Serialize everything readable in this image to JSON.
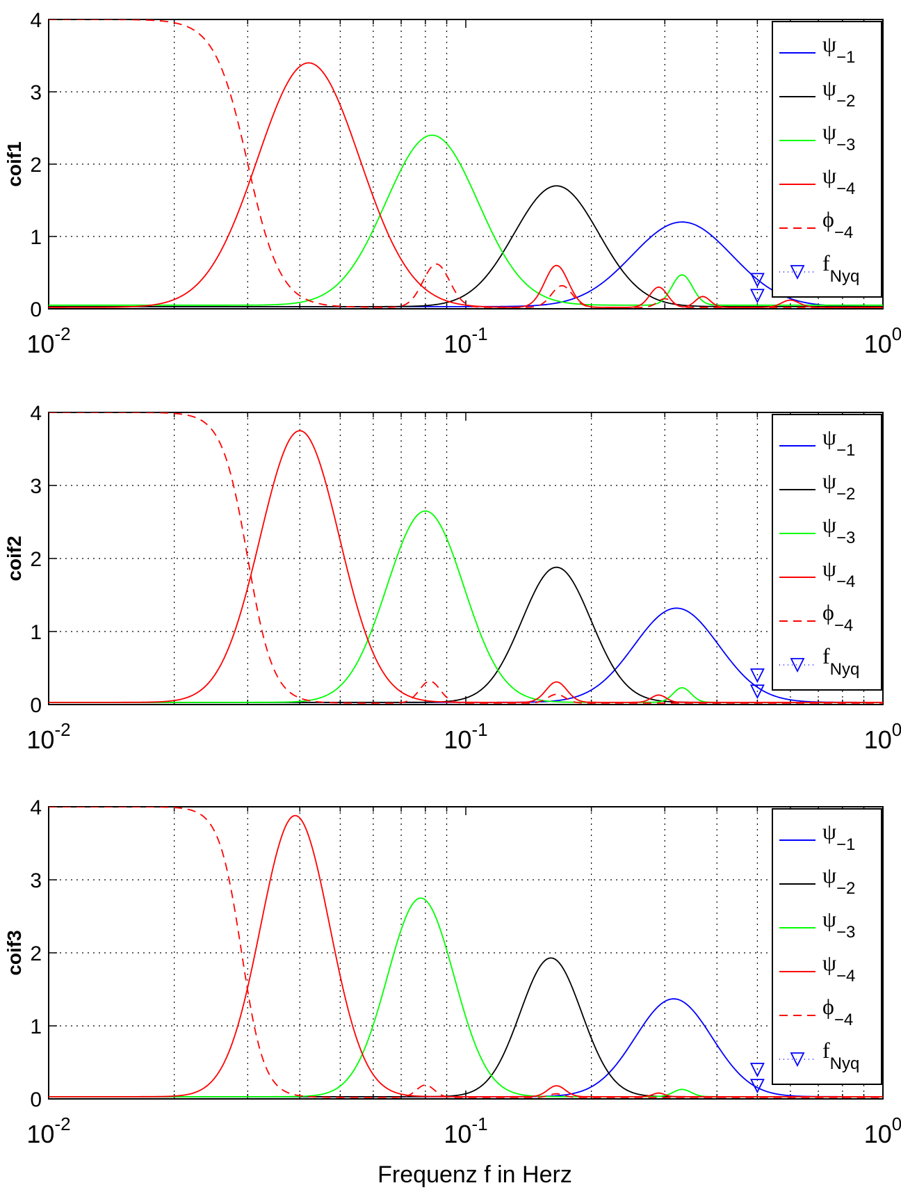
{
  "figure": {
    "xlabel": "Frequenz f in Herz"
  },
  "chart_data": [
    {
      "type": "line",
      "ylabel": "coif1",
      "xscale": "log",
      "xlim": [
        0.01,
        1
      ],
      "ylim": [
        0,
        4
      ],
      "grid": true,
      "legend_position": "top-right",
      "x_tick_labels": [
        {
          "base": "10",
          "exp": "-2"
        },
        {
          "base": "10",
          "exp": "-1"
        },
        {
          "base": "10",
          "exp": "0"
        }
      ],
      "y_tick_labels": [
        "0",
        "1",
        "2",
        "3",
        "4"
      ],
      "series": [
        {
          "name": "ψ",
          "sub": "−1",
          "color": "#0000ff",
          "style": "solid",
          "shape": "band",
          "peak": 1.2,
          "peak_f": 0.33,
          "width": 0.39,
          "floor": 0.03
        },
        {
          "name": "ψ",
          "sub": "−2",
          "color": "#000000",
          "style": "solid",
          "shape": "band",
          "peak": 1.7,
          "peak_f": 0.165,
          "width": 0.33,
          "floor": 0.03
        },
        {
          "name": "ψ",
          "sub": "−3",
          "color": "#00ff00",
          "style": "solid",
          "shape": "band",
          "peak": 2.4,
          "peak_f": 0.083,
          "width": 0.36,
          "floor": 0.05,
          "ripples": [
            {
              "f": 0.33,
              "a": 0.42,
              "w": 0.035
            }
          ]
        },
        {
          "name": "ψ",
          "sub": "−4",
          "color": "#ff0000",
          "style": "solid",
          "shape": "band",
          "peak": 3.4,
          "peak_f": 0.042,
          "width": 0.4,
          "floor": 0.02,
          "ripples": [
            {
              "f": 0.165,
              "a": 0.58,
              "w": 0.04
            },
            {
              "f": 0.29,
              "a": 0.28,
              "w": 0.03
            },
            {
              "f": 0.37,
              "a": 0.15,
              "w": 0.025
            },
            {
              "f": 0.6,
              "a": 0.1,
              "w": 0.03
            }
          ]
        },
        {
          "name": "ϕ",
          "sub": "−4",
          "color": "#ff0000",
          "style": "dashed",
          "shape": "lowpass",
          "peak": 4,
          "cutoff": 0.03,
          "steep": 11,
          "floor": 0.02,
          "ripples": [
            {
              "f": 0.085,
              "a": 0.6,
              "w": 0.045
            },
            {
              "f": 0.17,
              "a": 0.3,
              "w": 0.035
            },
            {
              "f": 0.3,
              "a": 0.12,
              "w": 0.025
            }
          ]
        },
        {
          "name": "f",
          "sub": "Nyq",
          "color": "#0000ff",
          "style": "dotted-marker",
          "marker": "triangle-down",
          "x": [
            0.5,
            0.5
          ],
          "y": [
            0.4,
            0.18
          ]
        }
      ]
    },
    {
      "type": "line",
      "ylabel": "coif2",
      "xscale": "log",
      "xlim": [
        0.01,
        1
      ],
      "ylim": [
        0,
        4
      ],
      "grid": true,
      "legend_position": "top-right",
      "x_tick_labels": [
        {
          "base": "10",
          "exp": "-2"
        },
        {
          "base": "10",
          "exp": "-1"
        },
        {
          "base": "10",
          "exp": "0"
        }
      ],
      "y_tick_labels": [
        "0",
        "1",
        "2",
        "3",
        "4"
      ],
      "series": [
        {
          "name": "ψ",
          "sub": "−1",
          "color": "#0000ff",
          "style": "solid",
          "shape": "band",
          "peak": 1.32,
          "peak_f": 0.32,
          "width": 0.33,
          "floor": 0.03
        },
        {
          "name": "ψ",
          "sub": "−2",
          "color": "#000000",
          "style": "solid",
          "shape": "band",
          "peak": 1.88,
          "peak_f": 0.165,
          "width": 0.27,
          "floor": 0.03
        },
        {
          "name": "ψ",
          "sub": "−3",
          "color": "#00ff00",
          "style": "solid",
          "shape": "band",
          "peak": 2.65,
          "peak_f": 0.08,
          "width": 0.3,
          "floor": 0.03,
          "ripples": [
            {
              "f": 0.33,
              "a": 0.2,
              "w": 0.03
            }
          ]
        },
        {
          "name": "ψ",
          "sub": "−4",
          "color": "#ff0000",
          "style": "solid",
          "shape": "band",
          "peak": 3.75,
          "peak_f": 0.04,
          "width": 0.31,
          "floor": 0.03,
          "ripples": [
            {
              "f": 0.165,
              "a": 0.28,
              "w": 0.035
            },
            {
              "f": 0.29,
              "a": 0.1,
              "w": 0.025
            }
          ]
        },
        {
          "name": "ϕ",
          "sub": "−4",
          "color": "#ff0000",
          "style": "dashed",
          "shape": "lowpass",
          "peak": 4,
          "cutoff": 0.03,
          "steep": 14,
          "floor": 0.02,
          "ripples": [
            {
              "f": 0.082,
              "a": 0.3,
              "w": 0.035
            },
            {
              "f": 0.165,
              "a": 0.12,
              "w": 0.03
            }
          ]
        },
        {
          "name": "f",
          "sub": "Nyq",
          "color": "#0000ff",
          "style": "dotted-marker",
          "marker": "triangle-down",
          "x": [
            0.5,
            0.5
          ],
          "y": [
            0.4,
            0.18
          ]
        }
      ]
    },
    {
      "type": "line",
      "ylabel": "coif3",
      "xscale": "log",
      "xlim": [
        0.01,
        1
      ],
      "ylim": [
        0,
        4
      ],
      "grid": true,
      "legend_position": "top-right",
      "x_tick_labels": [
        {
          "base": "10",
          "exp": "-2"
        },
        {
          "base": "10",
          "exp": "-1"
        },
        {
          "base": "10",
          "exp": "0"
        }
      ],
      "y_tick_labels": [
        "0",
        "1",
        "2",
        "3",
        "4"
      ],
      "series": [
        {
          "name": "ψ",
          "sub": "−1",
          "color": "#0000ff",
          "style": "solid",
          "shape": "band",
          "peak": 1.37,
          "peak_f": 0.315,
          "width": 0.3,
          "floor": 0.03
        },
        {
          "name": "ψ",
          "sub": "−2",
          "color": "#000000",
          "style": "solid",
          "shape": "band",
          "peak": 1.93,
          "peak_f": 0.16,
          "width": 0.24,
          "floor": 0.03
        },
        {
          "name": "ψ",
          "sub": "−3",
          "color": "#00ff00",
          "style": "solid",
          "shape": "band",
          "peak": 2.75,
          "peak_f": 0.078,
          "width": 0.26,
          "floor": 0.03,
          "ripples": [
            {
              "f": 0.33,
              "a": 0.1,
              "w": 0.03
            }
          ]
        },
        {
          "name": "ψ",
          "sub": "−4",
          "color": "#ff0000",
          "style": "solid",
          "shape": "band",
          "peak": 3.88,
          "peak_f": 0.039,
          "width": 0.27,
          "floor": 0.03,
          "ripples": [
            {
              "f": 0.165,
              "a": 0.15,
              "w": 0.03
            },
            {
              "f": 0.29,
              "a": 0.05,
              "w": 0.02
            }
          ]
        },
        {
          "name": "ϕ",
          "sub": "−4",
          "color": "#ff0000",
          "style": "dashed",
          "shape": "lowpass",
          "peak": 4,
          "cutoff": 0.029,
          "steep": 16,
          "floor": 0.02,
          "ripples": [
            {
              "f": 0.08,
              "a": 0.17,
              "w": 0.03
            },
            {
              "f": 0.165,
              "a": 0.05,
              "w": 0.025
            }
          ]
        },
        {
          "name": "f",
          "sub": "Nyq",
          "color": "#0000ff",
          "style": "dotted-marker",
          "marker": "triangle-down",
          "x": [
            0.5,
            0.5
          ],
          "y": [
            0.4,
            0.18
          ]
        }
      ]
    }
  ]
}
